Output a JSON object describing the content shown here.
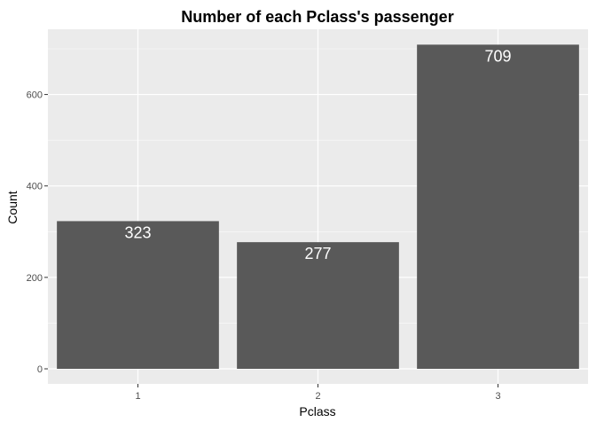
{
  "chart_data": {
    "type": "bar",
    "title": "Number of each Pclass's passenger",
    "xlabel": "Pclass",
    "ylabel": "Count",
    "categories": [
      "1",
      "2",
      "3"
    ],
    "values": [
      323,
      277,
      709
    ],
    "data_labels": [
      "323",
      "277",
      "709"
    ],
    "yticks": [
      0,
      200,
      400,
      600
    ],
    "ytick_labels": [
      "0",
      "200",
      "400",
      "600"
    ],
    "ylim": [
      0,
      745
    ],
    "grid": true,
    "legend": "none",
    "colors": {
      "panel": "#ebebeb",
      "grid_major": "#ffffff",
      "bar": "#595959",
      "data_label": "#ffffff",
      "tick_label": "#4d4d4d",
      "axis_title": "#000000"
    }
  }
}
